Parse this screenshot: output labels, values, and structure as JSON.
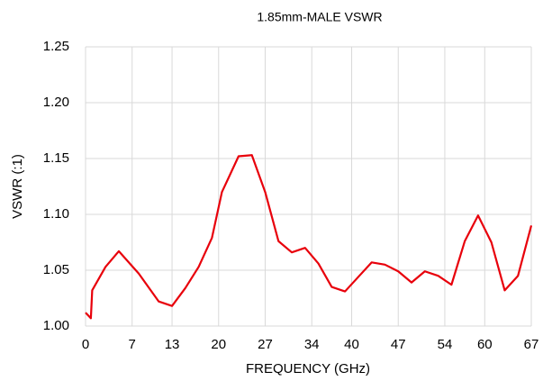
{
  "chart_data": {
    "type": "line",
    "title": "1.85mm-MALE VSWR",
    "x_label": "FREQUENCY  (GHz)",
    "y_label": "VSWR (:1)",
    "x": [
      0,
      0.8,
      1,
      3,
      5,
      8,
      11,
      13,
      15,
      17,
      19,
      20.5,
      23,
      25,
      27,
      29,
      31,
      33,
      35,
      37,
      39,
      41,
      43,
      45,
      47,
      49,
      51,
      53,
      55,
      57,
      59,
      61,
      63,
      65,
      67
    ],
    "values": [
      1.012,
      1.007,
      1.032,
      1.053,
      1.067,
      1.047,
      1.022,
      1.018,
      1.034,
      1.053,
      1.079,
      1.12,
      1.152,
      1.153,
      1.12,
      1.076,
      1.066,
      1.07,
      1.056,
      1.035,
      1.031,
      1.044,
      1.057,
      1.055,
      1.049,
      1.039,
      1.049,
      1.045,
      1.037,
      1.076,
      1.099,
      1.075,
      1.032,
      1.045,
      1.09
    ],
    "color": "#e8000b",
    "xlim": [
      0,
      67
    ],
    "xticks": [
      0,
      7,
      13,
      20,
      27,
      34,
      40,
      47,
      54,
      60,
      67
    ],
    "ylim": [
      1.0,
      1.25
    ],
    "yticks": [
      {
        "value": 1.0,
        "label": "1.00"
      },
      1.05,
      {
        "value": 1.1,
        "label": "1.10"
      },
      1.15,
      {
        "value": 1.2,
        "label": "1.20"
      },
      1.25
    ],
    "grid": true
  }
}
